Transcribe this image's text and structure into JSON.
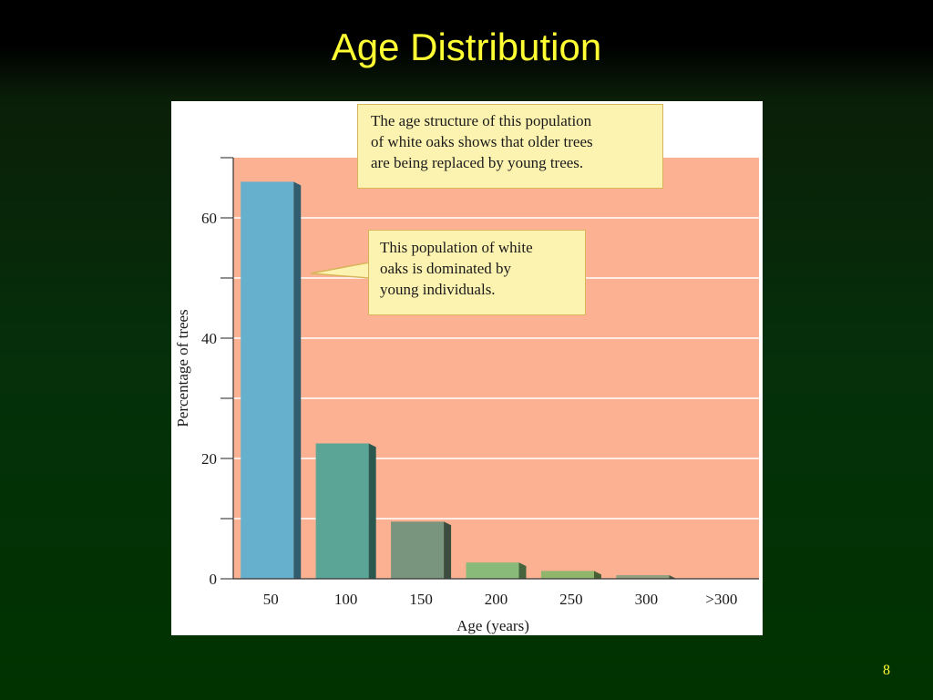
{
  "slide": {
    "title": "Age Distribution",
    "page_number": "8"
  },
  "colors": {
    "plot_background": "#fbb192",
    "callout_fill": "#fdf3b0",
    "title_text": "#ffff33"
  },
  "callouts": {
    "top": "The age structure of this population\nof white oaks shows that older trees\nare being replaced by young trees.",
    "middle": "This population of white\noaks is dominated by\nyoung individuals."
  },
  "chart_data": {
    "type": "bar",
    "title": "",
    "xlabel": "Age (years)",
    "ylabel": "Percentage of trees",
    "categories": [
      "50",
      "100",
      "150",
      "200",
      "250",
      "300",
      ">300"
    ],
    "values": [
      66,
      22.5,
      9.5,
      2.7,
      1.3,
      0.6,
      0
    ],
    "bar_colors": [
      "#5aa9c9",
      "#4e9e8e",
      "#6e8c74",
      "#7fb56e",
      "#86b060",
      "#8a9a74",
      "#8a9a74"
    ],
    "ylim": [
      0,
      70
    ],
    "y_ticks": [
      0,
      20,
      40,
      60
    ],
    "y_minor_ticks": [
      10,
      30,
      50,
      70
    ],
    "grid": true,
    "legend": "none"
  }
}
